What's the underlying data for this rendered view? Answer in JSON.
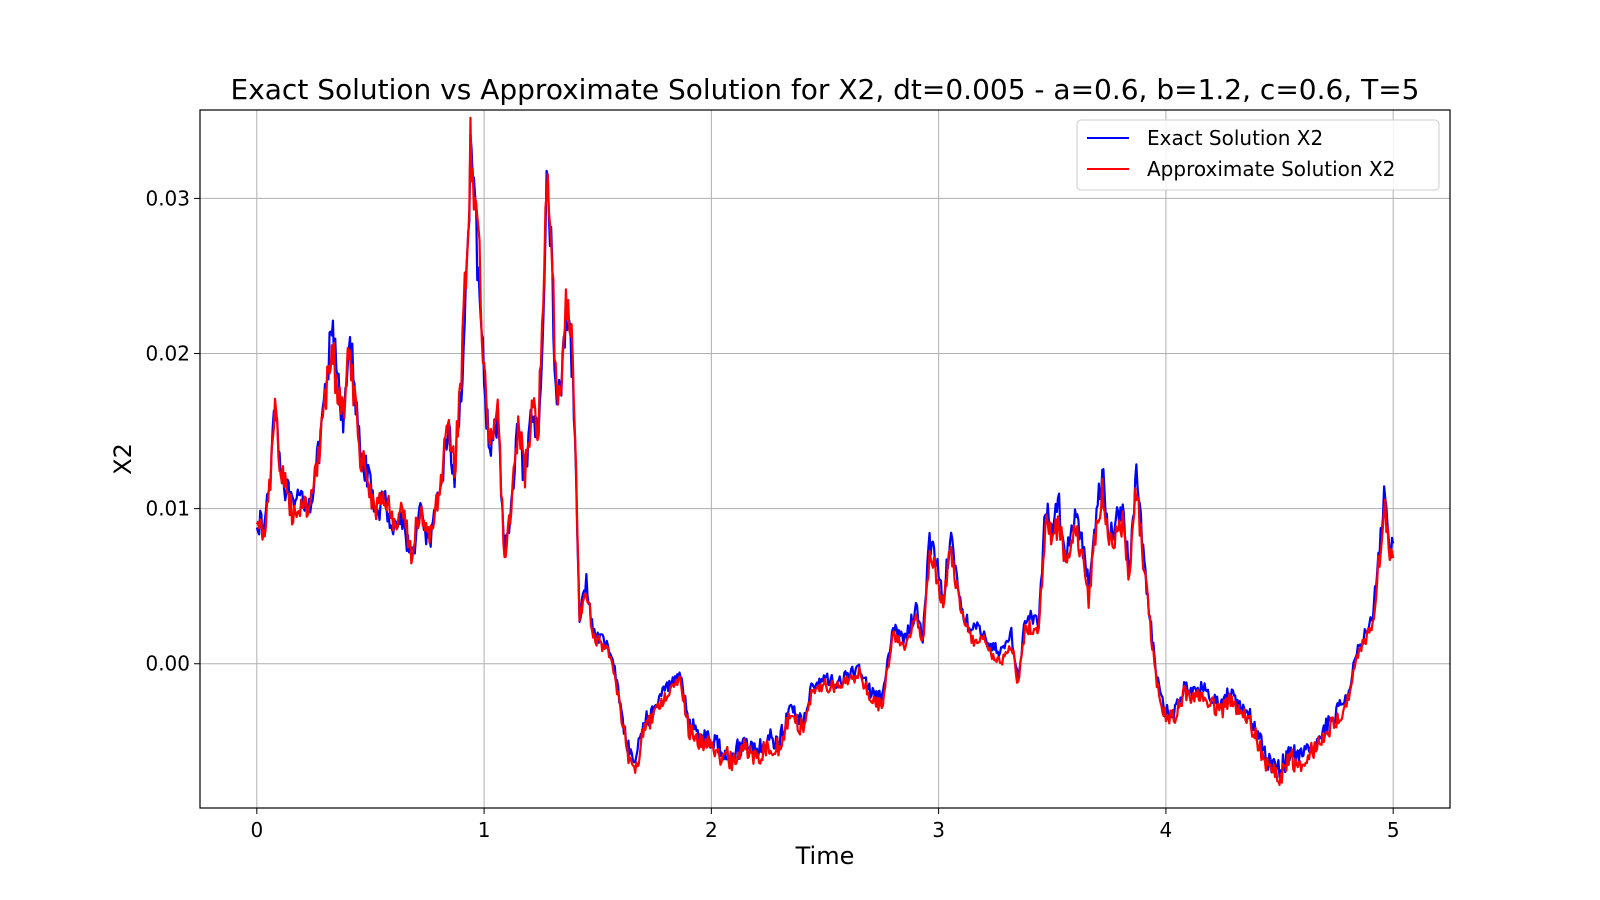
{
  "chart_data": {
    "type": "line",
    "title": "Exact Solution vs Approximate Solution for X2, dt=0.005 - a=0.6, b=1.2, c=0.6, T=5",
    "xlabel": "Time",
    "ylabel": "X2",
    "xlim": [
      -0.25,
      5.25
    ],
    "ylim": [
      -0.0093,
      0.0357
    ],
    "xticks": [
      0,
      1,
      2,
      3,
      4,
      5
    ],
    "xtick_labels": [
      "0",
      "1",
      "2",
      "3",
      "4",
      "5"
    ],
    "yticks": [
      0.0,
      0.01,
      0.02,
      0.03
    ],
    "ytick_labels": [
      "0.00",
      "0.01",
      "0.02",
      "0.03"
    ],
    "grid": true,
    "legend_position": "top-right",
    "dt": 0.005,
    "series": [
      {
        "name": "Exact Solution X2",
        "color": "#0000ff",
        "x": [
          0.0,
          0.03,
          0.06,
          0.08,
          0.1,
          0.13,
          0.16,
          0.2,
          0.23,
          0.27,
          0.3,
          0.33,
          0.36,
          0.38,
          0.4,
          0.42,
          0.45,
          0.48,
          0.52,
          0.56,
          0.6,
          0.64,
          0.68,
          0.72,
          0.76,
          0.8,
          0.84,
          0.87,
          0.9,
          0.92,
          0.94,
          0.96,
          0.98,
          1.0,
          1.03,
          1.06,
          1.09,
          1.12,
          1.15,
          1.18,
          1.21,
          1.24,
          1.26,
          1.28,
          1.3,
          1.32,
          1.34,
          1.36,
          1.38,
          1.4,
          1.42,
          1.45,
          1.48,
          1.52,
          1.56,
          1.6,
          1.63,
          1.67,
          1.7,
          1.74,
          1.78,
          1.82,
          1.86,
          1.9,
          1.95,
          2.0,
          2.05,
          2.1,
          2.15,
          2.2,
          2.25,
          2.3,
          2.35,
          2.4,
          2.45,
          2.5,
          2.55,
          2.6,
          2.65,
          2.7,
          2.75,
          2.8,
          2.85,
          2.9,
          2.93,
          2.96,
          2.99,
          3.02,
          3.05,
          3.08,
          3.11,
          3.14,
          3.17,
          3.2,
          3.24,
          3.28,
          3.32,
          3.35,
          3.38,
          3.41,
          3.44,
          3.47,
          3.5,
          3.53,
          3.56,
          3.6,
          3.63,
          3.66,
          3.69,
          3.72,
          3.75,
          3.78,
          3.81,
          3.84,
          3.87,
          3.9,
          3.93,
          3.96,
          4.0,
          4.04,
          4.08,
          4.12,
          4.16,
          4.2,
          4.24,
          4.28,
          4.32,
          4.36,
          4.4,
          4.45,
          4.5,
          4.55,
          4.6,
          4.65,
          4.7,
          4.75,
          4.8,
          4.84,
          4.88,
          4.91,
          4.94,
          4.96,
          4.98,
          5.0
        ],
        "y": [
          0.0095,
          0.0085,
          0.0122,
          0.0178,
          0.0132,
          0.0112,
          0.0098,
          0.0108,
          0.0102,
          0.0132,
          0.0168,
          0.0215,
          0.0178,
          0.0155,
          0.0205,
          0.0192,
          0.0142,
          0.0126,
          0.0098,
          0.0106,
          0.0088,
          0.0094,
          0.0068,
          0.0098,
          0.0076,
          0.0105,
          0.0152,
          0.012,
          0.018,
          0.024,
          0.032,
          0.0285,
          0.0248,
          0.0178,
          0.0136,
          0.0158,
          0.0072,
          0.0098,
          0.0152,
          0.0118,
          0.0158,
          0.0148,
          0.0235,
          0.032,
          0.0245,
          0.0162,
          0.0182,
          0.0228,
          0.0215,
          0.0148,
          0.0032,
          0.0052,
          0.002,
          0.0015,
          0.0008,
          -0.0025,
          -0.0055,
          -0.0062,
          -0.0038,
          -0.0032,
          -0.002,
          -0.0012,
          -0.0005,
          -0.0038,
          -0.0045,
          -0.005,
          -0.0055,
          -0.0058,
          -0.005,
          -0.0056,
          -0.0048,
          -0.005,
          -0.0028,
          -0.0038,
          -0.0012,
          -0.001,
          -0.0012,
          -0.0008,
          -0.0002,
          -0.0018,
          -0.0023,
          0.0022,
          0.0016,
          0.0035,
          0.0018,
          0.008,
          0.0066,
          0.0042,
          0.0082,
          0.0056,
          0.0032,
          0.0022,
          0.0022,
          0.002,
          0.001,
          0.0008,
          0.002,
          -0.001,
          0.0028,
          0.003,
          0.0024,
          0.01,
          0.009,
          0.0102,
          0.007,
          0.0098,
          0.008,
          0.005,
          0.0095,
          0.0122,
          0.0085,
          0.009,
          0.0102,
          0.006,
          0.0126,
          0.0072,
          0.003,
          -0.001,
          -0.0032,
          -0.003,
          -0.0015,
          -0.0018,
          -0.0015,
          -0.0022,
          -0.0028,
          -0.0018,
          -0.0028,
          -0.003,
          -0.0045,
          -0.0062,
          -0.0068,
          -0.0058,
          -0.0062,
          -0.0052,
          -0.0042,
          -0.0032,
          -0.002,
          0.001,
          0.002,
          0.003,
          0.0075,
          0.011,
          0.0078,
          0.0072
        ]
      },
      {
        "name": "Approximate Solution X2",
        "color": "#ff0000",
        "x": [
          0.0,
          0.03,
          0.06,
          0.08,
          0.1,
          0.13,
          0.16,
          0.2,
          0.23,
          0.27,
          0.3,
          0.33,
          0.36,
          0.38,
          0.4,
          0.42,
          0.45,
          0.48,
          0.52,
          0.56,
          0.6,
          0.64,
          0.68,
          0.72,
          0.76,
          0.8,
          0.84,
          0.87,
          0.9,
          0.92,
          0.94,
          0.96,
          0.98,
          1.0,
          1.03,
          1.06,
          1.09,
          1.12,
          1.15,
          1.18,
          1.21,
          1.24,
          1.26,
          1.28,
          1.3,
          1.32,
          1.34,
          1.36,
          1.38,
          1.4,
          1.42,
          1.45,
          1.48,
          1.52,
          1.56,
          1.6,
          1.63,
          1.67,
          1.7,
          1.74,
          1.78,
          1.82,
          1.86,
          1.9,
          1.95,
          2.0,
          2.05,
          2.1,
          2.15,
          2.2,
          2.25,
          2.3,
          2.35,
          2.4,
          2.45,
          2.5,
          2.55,
          2.6,
          2.65,
          2.7,
          2.75,
          2.8,
          2.85,
          2.9,
          2.93,
          2.96,
          2.99,
          3.02,
          3.05,
          3.08,
          3.11,
          3.14,
          3.17,
          3.2,
          3.24,
          3.28,
          3.32,
          3.35,
          3.38,
          3.41,
          3.44,
          3.47,
          3.5,
          3.53,
          3.56,
          3.6,
          3.63,
          3.66,
          3.69,
          3.72,
          3.75,
          3.78,
          3.81,
          3.84,
          3.87,
          3.9,
          3.93,
          3.96,
          4.0,
          4.04,
          4.08,
          4.12,
          4.16,
          4.2,
          4.24,
          4.28,
          4.32,
          4.36,
          4.4,
          4.45,
          4.5,
          4.55,
          4.6,
          4.65,
          4.7,
          4.75,
          4.8,
          4.84,
          4.88,
          4.91,
          4.94,
          4.96,
          4.98,
          5.0
        ],
        "y": [
          0.0092,
          0.0083,
          0.012,
          0.0175,
          0.0128,
          0.011,
          0.0096,
          0.0106,
          0.01,
          0.013,
          0.0165,
          0.0205,
          0.0172,
          0.0158,
          0.0212,
          0.0188,
          0.0138,
          0.0124,
          0.01,
          0.0108,
          0.009,
          0.0096,
          0.0072,
          0.01,
          0.0078,
          0.0108,
          0.0158,
          0.0125,
          0.0188,
          0.0252,
          0.0332,
          0.0295,
          0.0258,
          0.0185,
          0.014,
          0.016,
          0.007,
          0.0096,
          0.0158,
          0.0124,
          0.0165,
          0.0155,
          0.0245,
          0.0328,
          0.0252,
          0.0168,
          0.0188,
          0.024,
          0.0225,
          0.0152,
          0.003,
          0.005,
          0.0018,
          0.0012,
          0.0005,
          -0.0028,
          -0.0058,
          -0.0068,
          -0.0042,
          -0.0036,
          -0.0024,
          -0.0016,
          -0.0008,
          -0.0042,
          -0.005,
          -0.0054,
          -0.006,
          -0.0062,
          -0.0054,
          -0.006,
          -0.0052,
          -0.0054,
          -0.0032,
          -0.0042,
          -0.0016,
          -0.0014,
          -0.0016,
          -0.0012,
          -0.0006,
          -0.0022,
          -0.0027,
          0.0018,
          0.0012,
          0.003,
          0.0012,
          0.0072,
          0.0058,
          0.0036,
          0.0075,
          0.005,
          0.0026,
          0.0016,
          0.0016,
          0.0014,
          0.0004,
          0.0002,
          0.0014,
          -0.0014,
          0.0022,
          0.0024,
          0.0018,
          0.009,
          0.0082,
          0.0092,
          0.0062,
          0.0088,
          0.0072,
          0.0042,
          0.0085,
          0.011,
          0.0076,
          0.0082,
          0.0092,
          0.0054,
          0.0114,
          0.0066,
          0.0026,
          -0.0014,
          -0.0036,
          -0.0034,
          -0.0019,
          -0.0022,
          -0.0019,
          -0.0026,
          -0.0032,
          -0.0022,
          -0.0032,
          -0.0034,
          -0.0049,
          -0.0066,
          -0.0072,
          -0.0062,
          -0.0066,
          -0.0056,
          -0.0046,
          -0.0036,
          -0.0024,
          0.0006,
          0.0016,
          0.0026,
          0.007,
          0.0105,
          0.0074,
          0.0068
        ]
      }
    ]
  }
}
